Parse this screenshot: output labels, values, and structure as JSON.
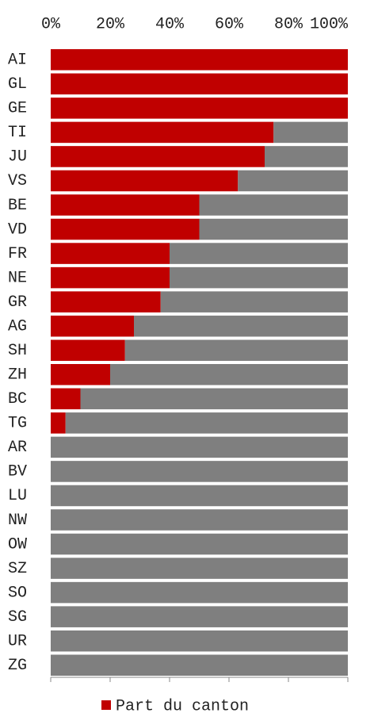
{
  "chart_data": {
    "type": "stacked_barh",
    "categories": [
      "AI",
      "GL",
      "GE",
      "TI",
      "JU",
      "VS",
      "BE",
      "VD",
      "FR",
      "NE",
      "GR",
      "AG",
      "SH",
      "ZH",
      "BC",
      "TG",
      "AR",
      "BV",
      "LU",
      "NW",
      "OW",
      "SZ",
      "SO",
      "SG",
      "UR",
      "ZG"
    ],
    "series": [
      {
        "name": "Part du canton",
        "color": "#c00000",
        "values": [
          100,
          100,
          100,
          75,
          72,
          63,
          50,
          50,
          40,
          40,
          37,
          28,
          25,
          20,
          10,
          5,
          0,
          0,
          0,
          0,
          0,
          0,
          0,
          0,
          0,
          0
        ]
      },
      {
        "color": "#7f7f7f",
        "values": [
          0,
          0,
          0,
          25,
          28,
          37,
          50,
          50,
          60,
          60,
          63,
          72,
          75,
          80,
          90,
          95,
          100,
          100,
          100,
          100,
          100,
          100,
          100,
          100,
          100,
          100
        ]
      }
    ],
    "xlim": [
      0,
      100
    ],
    "xticks": [
      {
        "value": 0,
        "label": "0%"
      },
      {
        "value": 20,
        "label": "20%"
      },
      {
        "value": 40,
        "label": "40%"
      },
      {
        "value": 60,
        "label": "60%"
      },
      {
        "value": 80,
        "label": "80%"
      },
      {
        "value": 100,
        "label": "100%"
      }
    ],
    "legend": "bottom"
  }
}
